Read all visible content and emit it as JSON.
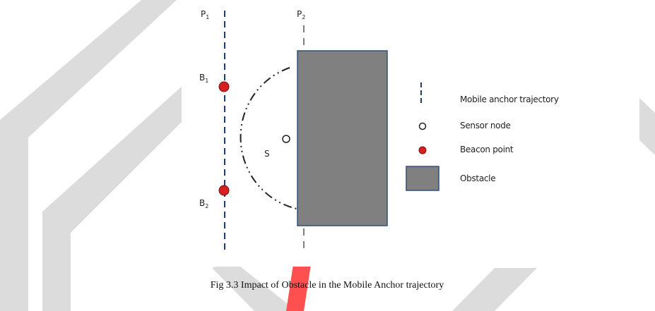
{
  "diagram": {
    "lines": [
      {
        "main": "P",
        "sub": "1"
      },
      {
        "main": "P",
        "sub": "2"
      }
    ],
    "beacons": [
      {
        "main": "B",
        "sub": "1"
      },
      {
        "main": "B",
        "sub": "2"
      }
    ],
    "sensor_label": "S",
    "legend": [
      "Mobile anchor trajectory",
      "Sensor node",
      "Beacon point",
      "Obstacle"
    ]
  },
  "caption": "Fig 3.3 Impact of Obstacle in the Mobile Anchor trajectory"
}
